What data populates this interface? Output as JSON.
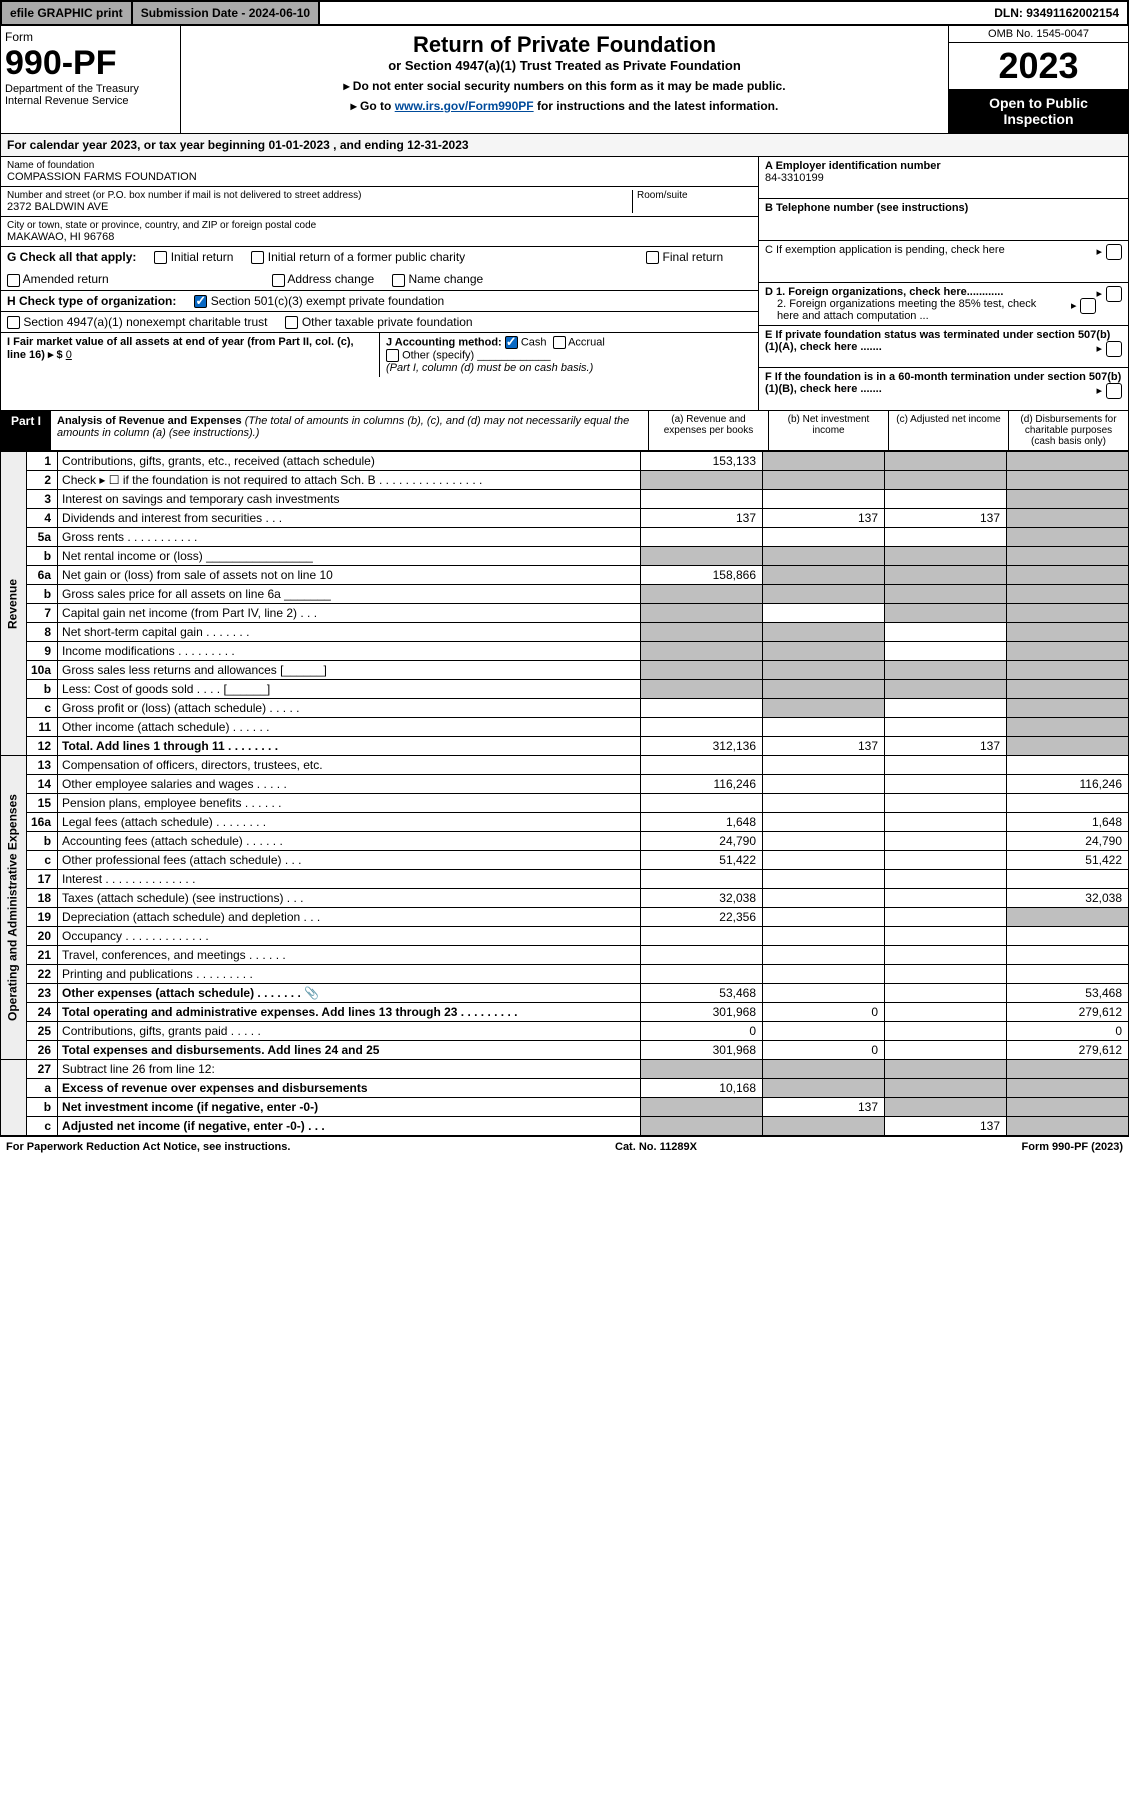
{
  "topbar": {
    "efile": "efile GRAPHIC print",
    "submission": "Submission Date - 2024-06-10",
    "dln": "DLN: 93491162002154"
  },
  "header": {
    "form_word": "Form",
    "form_no": "990-PF",
    "dept": "Department of the Treasury\nInternal Revenue Service",
    "title": "Return of Private Foundation",
    "subtitle": "or Section 4947(a)(1) Trust Treated as Private Foundation",
    "instr1": "▸ Do not enter social security numbers on this form as it may be made public.",
    "instr2_pre": "▸ Go to ",
    "instr2_link": "www.irs.gov/Form990PF",
    "instr2_post": " for instructions and the latest information.",
    "omb": "OMB No. 1545-0047",
    "year": "2023",
    "open": "Open to Public Inspection"
  },
  "calyear": "For calendar year 2023, or tax year beginning 01-01-2023                               , and ending 12-31-2023",
  "name_label": "Name of foundation",
  "name": "COMPASSION FARMS FOUNDATION",
  "addr_label": "Number and street (or P.O. box number if mail is not delivered to street address)",
  "addr": "2372 BALDWIN AVE",
  "room_label": "Room/suite",
  "city_label": "City or town, state or province, country, and ZIP or foreign postal code",
  "city": "MAKAWAO, HI  96768",
  "A_label": "A Employer identification number",
  "A_val": "84-3310199",
  "B_label": "B Telephone number (see instructions)",
  "C_label": "C If exemption application is pending, check here",
  "D1_label": "D 1. Foreign organizations, check here............",
  "D2_label": "2. Foreign organizations meeting the 85% test, check here and attach computation ...",
  "E_label": "E  If private foundation status was terminated under section 507(b)(1)(A), check here .......",
  "F_label": "F  If the foundation is in a 60-month termination under section 507(b)(1)(B), check here .......",
  "G_label": "G Check all that apply:",
  "G_opts": {
    "initial": "Initial return",
    "initial_pub": "Initial return of a former public charity",
    "final": "Final return",
    "amended": "Amended return",
    "addr": "Address change",
    "name": "Name change"
  },
  "H_label": "H Check type of organization:",
  "H_opts": {
    "501c3": "Section 501(c)(3) exempt private foundation",
    "4947": "Section 4947(a)(1) nonexempt charitable trust",
    "other": "Other taxable private foundation"
  },
  "I_label": "I Fair market value of all assets at end of year (from Part II, col. (c), line 16) ▸ $",
  "I_val": "0",
  "J_label": "J Accounting method:",
  "J_opts": {
    "cash": "Cash",
    "accrual": "Accrual",
    "other": "Other (specify)"
  },
  "J_note": "(Part I, column (d) must be on cash basis.)",
  "part1": {
    "label": "Part I",
    "title": "Analysis of Revenue and Expenses",
    "note": "(The total of amounts in columns (b), (c), and (d) may not necessarily equal the amounts in column (a) (see instructions).)",
    "cols": {
      "a": "(a)   Revenue and expenses per books",
      "b": "(b)   Net investment income",
      "c": "(c)   Adjusted net income",
      "d": "(d)   Disbursements for charitable purposes (cash basis only)"
    }
  },
  "sections": {
    "rev": "Revenue",
    "exp": "Operating and Administrative Expenses"
  },
  "rows": [
    {
      "n": "1",
      "d": "Contributions, gifts, grants, etc., received (attach schedule)",
      "a": "153,133",
      "bs": true,
      "cs": true,
      "ds": true
    },
    {
      "n": "2",
      "d": "Check ▸ ☐ if the foundation is not required to attach Sch. B    .  .  .  .  .  .  .  .  .  .  .  .  .  .  .  .",
      "as": true,
      "bs": true,
      "cs": true,
      "ds": true
    },
    {
      "n": "3",
      "d": "Interest on savings and temporary cash investments",
      "ds": true
    },
    {
      "n": "4",
      "d": "Dividends and interest from securities     .   .   .",
      "a": "137",
      "b": "137",
      "c": "137",
      "ds": true
    },
    {
      "n": "5a",
      "d": "Gross rents     .   .   .   .   .   .   .   .   .   .   .",
      "ds": true
    },
    {
      "n": "b",
      "d": "Net rental income or (loss)   ________________",
      "as": true,
      "bs": true,
      "cs": true,
      "ds": true
    },
    {
      "n": "6a",
      "d": "Net gain or (loss) from sale of assets not on line 10",
      "a": "158,866",
      "bs": true,
      "cs": true,
      "ds": true
    },
    {
      "n": "b",
      "d": "Gross sales price for all assets on line 6a _______",
      "as": true,
      "bs": true,
      "cs": true,
      "ds": true
    },
    {
      "n": "7",
      "d": "Capital gain net income (from Part IV, line 2)    .   .   .",
      "as": true,
      "cs": true,
      "ds": true
    },
    {
      "n": "8",
      "d": "Net short-term capital gain   .   .   .   .   .   .   .",
      "as": true,
      "bs": true,
      "ds": true
    },
    {
      "n": "9",
      "d": "Income modifications  .   .   .   .   .   .   .   .   .",
      "as": true,
      "bs": true,
      "ds": true
    },
    {
      "n": "10a",
      "d": "Gross sales less returns and allowances  [______]",
      "as": true,
      "bs": true,
      "cs": true,
      "ds": true
    },
    {
      "n": "b",
      "d": "Less: Cost of goods sold     .   .   .   .   [______]",
      "as": true,
      "bs": true,
      "cs": true,
      "ds": true
    },
    {
      "n": "c",
      "d": "Gross profit or (loss) (attach schedule)     .   .   .   .   .",
      "bs": true,
      "ds": true
    },
    {
      "n": "11",
      "d": "Other income (attach schedule)     .   .   .   .   .   .",
      "ds": true
    },
    {
      "n": "12",
      "d": "Total. Add lines 1 through 11   .   .   .   .   .   .   .   .",
      "bold": true,
      "a": "312,136",
      "b": "137",
      "c": "137",
      "ds": true
    }
  ],
  "exp_rows": [
    {
      "n": "13",
      "d": "Compensation of officers, directors, trustees, etc."
    },
    {
      "n": "14",
      "d": "Other employee salaries and wages    .   .   .   .   .",
      "a": "116,246",
      "d4": "116,246"
    },
    {
      "n": "15",
      "d": "Pension plans, employee benefits  .   .   .   .   .   ."
    },
    {
      "n": "16a",
      "d": "Legal fees (attach schedule)  .   .   .   .   .   .   .   .",
      "a": "1,648",
      "d4": "1,648"
    },
    {
      "n": "b",
      "d": "Accounting fees (attach schedule)  .   .   .   .   .   .",
      "a": "24,790",
      "d4": "24,790"
    },
    {
      "n": "c",
      "d": "Other professional fees (attach schedule)     .   .   .",
      "a": "51,422",
      "d4": "51,422"
    },
    {
      "n": "17",
      "d": "Interest  .   .   .   .   .   .   .   .   .   .   .   .   .   ."
    },
    {
      "n": "18",
      "d": "Taxes (attach schedule) (see instructions)      .   .   .",
      "a": "32,038",
      "d4": "32,038"
    },
    {
      "n": "19",
      "d": "Depreciation (attach schedule) and depletion    .   .   .",
      "a": "22,356",
      "ds": true
    },
    {
      "n": "20",
      "d": "Occupancy  .   .   .   .   .   .   .   .   .   .   .   .   ."
    },
    {
      "n": "21",
      "d": "Travel, conferences, and meetings  .   .   .   .   .   ."
    },
    {
      "n": "22",
      "d": "Printing and publications  .   .   .   .   .   .   .   .   ."
    },
    {
      "n": "23",
      "d": "Other expenses (attach schedule)  .   .   .   .   .   .   .",
      "a": "53,468",
      "d4": "53,468",
      "icon": true
    },
    {
      "n": "24",
      "d": "Total operating and administrative expenses. Add lines 13 through 23   .   .   .   .   .   .   .   .   .",
      "bold": true,
      "a": "301,968",
      "b": "0",
      "d4": "279,612"
    },
    {
      "n": "25",
      "d": "Contributions, gifts, grants paid      .   .   .   .   .",
      "a": "0",
      "d4": "0"
    },
    {
      "n": "26",
      "d": "Total expenses and disbursements. Add lines 24 and 25",
      "bold": true,
      "a": "301,968",
      "b": "0",
      "d4": "279,612"
    }
  ],
  "bottom_rows": [
    {
      "n": "27",
      "d": "Subtract line 26 from line 12:",
      "as": true,
      "bs": true,
      "cs": true,
      "ds": true
    },
    {
      "n": "a",
      "d": "Excess of revenue over expenses and disbursements",
      "bold": true,
      "a": "10,168",
      "bs": true,
      "cs": true,
      "ds": true
    },
    {
      "n": "b",
      "d": "Net investment income (if negative, enter -0-)",
      "bold": true,
      "as": true,
      "b": "137",
      "cs": true,
      "ds": true
    },
    {
      "n": "c",
      "d": "Adjusted net income (if negative, enter -0-)    .   .   .",
      "bold": true,
      "as": true,
      "bs": true,
      "c": "137",
      "ds": true
    }
  ],
  "footer": {
    "left": "For Paperwork Reduction Act Notice, see instructions.",
    "mid": "Cat. No. 11289X",
    "right": "Form 990-PF (2023)"
  }
}
